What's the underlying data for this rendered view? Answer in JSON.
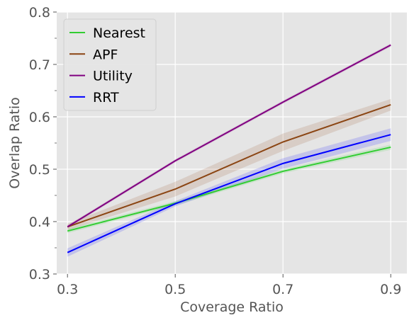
{
  "chart_data": {
    "type": "line",
    "title": "",
    "xlabel": "Coverage Ratio",
    "ylabel": "Overlap Ratio",
    "x": [
      0.3,
      0.5,
      0.7,
      0.9
    ],
    "x_tick_labels": [
      "0.3",
      "0.5",
      "0.7",
      "0.9"
    ],
    "xlim": [
      0.28,
      0.93
    ],
    "ylim": [
      0.3,
      0.8
    ],
    "y_ticks": [
      0.3,
      0.4,
      0.5,
      0.6,
      0.7,
      0.8
    ],
    "y_tick_labels": [
      "0.3",
      "0.4",
      "0.5",
      "0.6",
      "0.7",
      "0.8"
    ],
    "y_minor_ticks": [
      0.35,
      0.45,
      0.55,
      0.65,
      0.75
    ],
    "grid": true,
    "legend_position": "top-left",
    "style": {
      "background": "#e5e5e5",
      "grid_color": "#ffffff"
    },
    "series": [
      {
        "name": "Nearest",
        "color": "#32cd32",
        "values": [
          0.382,
          0.435,
          0.496,
          0.542
        ],
        "lower": [
          0.378,
          0.431,
          0.492,
          0.537
        ],
        "upper": [
          0.386,
          0.439,
          0.5,
          0.547
        ]
      },
      {
        "name": "APF",
        "color": "#8b4513",
        "values": [
          0.39,
          0.462,
          0.552,
          0.623
        ],
        "lower": [
          0.384,
          0.448,
          0.535,
          0.612
        ],
        "upper": [
          0.396,
          0.476,
          0.568,
          0.634
        ]
      },
      {
        "name": "Utility",
        "color": "#800080",
        "values": [
          0.39,
          0.516,
          0.628,
          0.737
        ],
        "lower": [
          0.387,
          0.513,
          0.625,
          0.734
        ],
        "upper": [
          0.393,
          0.519,
          0.631,
          0.74
        ]
      },
      {
        "name": "RRT",
        "color": "#0000ff",
        "values": [
          0.341,
          0.434,
          0.511,
          0.566
        ],
        "lower": [
          0.333,
          0.429,
          0.501,
          0.554
        ],
        "upper": [
          0.349,
          0.439,
          0.521,
          0.578
        ]
      }
    ]
  }
}
